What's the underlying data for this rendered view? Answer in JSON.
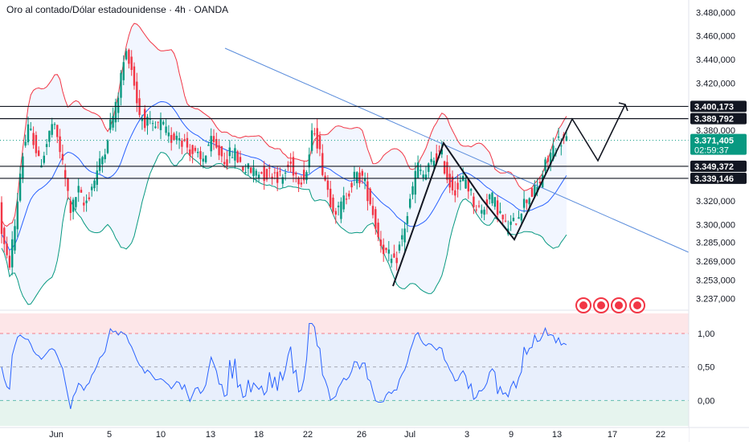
{
  "chart_data": {
    "type": "candlestick",
    "title": "Oro al contado/Dólar estadounidense · 4h · OANDA",
    "price_axis": {
      "ticks": [
        "3.480,000",
        "3.460,000",
        "3.440,000",
        "3.420,000",
        "3.380,000",
        "3.320,000",
        "3.300,000",
        "3.285,000",
        "3.269,000",
        "3.253,000",
        "3.237,000"
      ],
      "range": [
        3230,
        3485
      ]
    },
    "price_labels": [
      {
        "name": "resistance-3400",
        "text": "3.400,173",
        "value": 3400.173,
        "style": "dark"
      },
      {
        "name": "resistance-3389",
        "text": "3.389,792",
        "value": 3389.792,
        "style": "dark"
      },
      {
        "name": "last-price",
        "text": "3.371,405",
        "value": 3371.405,
        "style": "green",
        "timer": "02:59:37"
      },
      {
        "name": "support-3349",
        "text": "3.349,372",
        "value": 3349.372,
        "style": "dark"
      },
      {
        "name": "support-3339",
        "text": "3.339,146",
        "value": 3339.146,
        "style": "dark"
      }
    ],
    "x_axis": {
      "labels": [
        "Jun",
        "5",
        "10",
        "13",
        "18",
        "22",
        "26",
        "Jul",
        "3",
        "9",
        "13",
        "17",
        "22"
      ]
    },
    "indicator": {
      "name": "oscillator",
      "ticks": [
        "1,00",
        "0,50",
        "0,00"
      ],
      "range": [
        -0.38,
        1.3
      ],
      "levels": [
        1.0,
        0.5,
        0.0
      ]
    },
    "colors": {
      "up": "#089981",
      "down": "#f23645",
      "band_upper": "#f23645",
      "band_lower": "#089981",
      "basis": "#2962ff",
      "trendline": "#5b8ddc",
      "level_line": "#131722",
      "oscillator": "#2962ff"
    }
  }
}
